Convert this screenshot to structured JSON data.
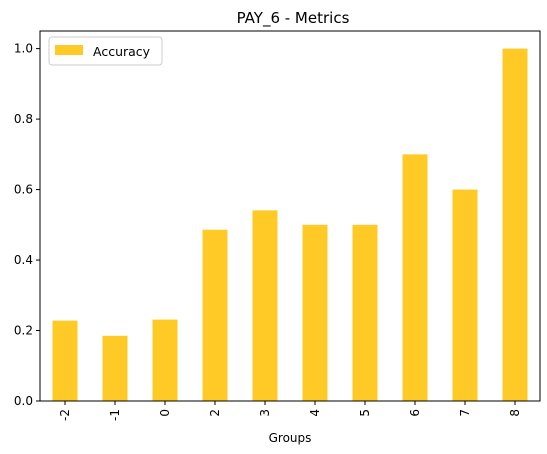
{
  "chart_data": {
    "type": "bar",
    "title": "PAY_6 - Metrics",
    "xlabel": "Groups",
    "ylabel": "",
    "categories": [
      "-2",
      "-1",
      "0",
      "2",
      "3",
      "4",
      "5",
      "6",
      "7",
      "8"
    ],
    "series": [
      {
        "name": "Accuracy",
        "color": "#FFC926",
        "values": [
          0.228,
          0.185,
          0.231,
          0.486,
          0.541,
          0.5,
          0.5,
          0.7,
          0.6,
          1.0
        ]
      }
    ],
    "ylim": [
      0,
      1.05
    ],
    "yticks": [
      "0.0",
      "0.2",
      "0.4",
      "0.6",
      "0.8",
      "1.0"
    ],
    "ytick_values": [
      0,
      0.2,
      0.4,
      0.6,
      0.8,
      1.0
    ],
    "grid": false,
    "legend_position": "top-left"
  }
}
